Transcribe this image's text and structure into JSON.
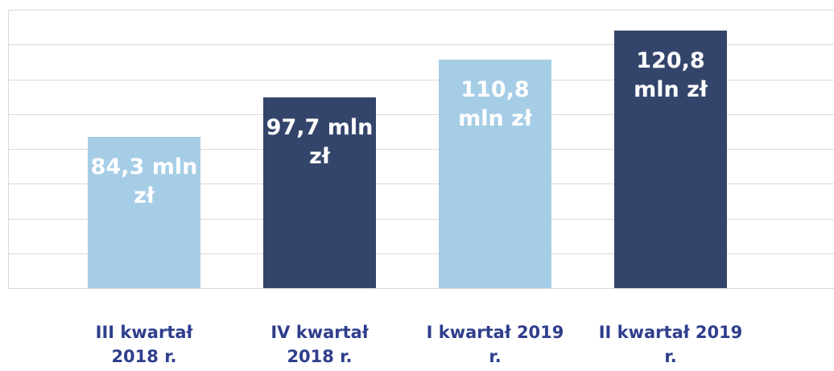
{
  "chart_data": {
    "type": "bar",
    "categories": [
      "III kwartał 2018 r.",
      "IV kwartał 2018 r.",
      "I kwartał 2019 r.",
      "II kwartał 2019 r."
    ],
    "values": [
      84.3,
      97.7,
      110.8,
      120.8
    ],
    "value_labels": [
      "84,3 mln zł",
      "97,7 mln zł",
      "110,8 mln zł",
      "120,8 mln zł"
    ],
    "colors": [
      "#a6cde6",
      "#34456b",
      "#a6cde6",
      "#34456b"
    ],
    "ylim": [
      32,
      128
    ],
    "yticks": [
      32,
      44,
      56,
      68,
      80,
      92,
      104,
      116,
      128
    ],
    "grid": true
  }
}
